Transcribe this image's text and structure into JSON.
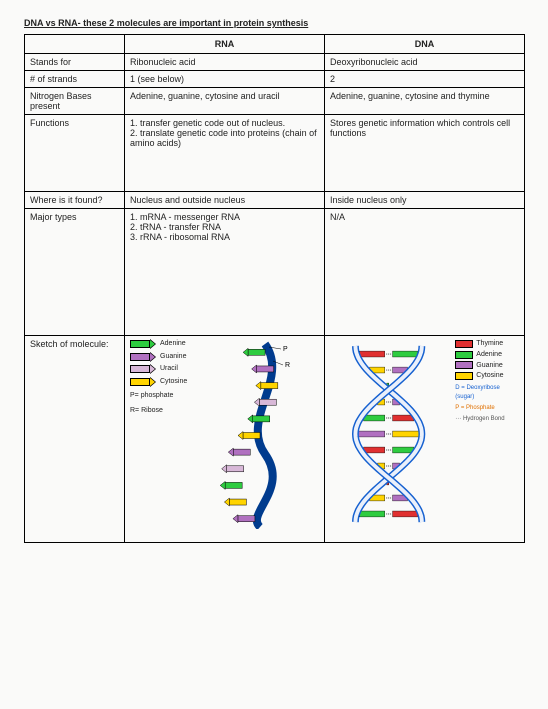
{
  "title": "DNA vs RNA- these 2 molecules are important in protein synthesis",
  "columns": {
    "c1": "",
    "c2": "RNA",
    "c3": "DNA"
  },
  "rows": {
    "stands": {
      "label": "Stands for",
      "rna": "Ribonucleic acid",
      "dna": "Deoxyribonucleic acid"
    },
    "strands": {
      "label": "# of strands",
      "rna": "1 (see below)",
      "dna": "2"
    },
    "bases": {
      "label": "Nitrogen Bases present",
      "rna": "Adenine, guanine, cytosine and uracil",
      "dna": "Adenine, guanine, cytosine and thymine"
    },
    "functions": {
      "label": "Functions",
      "rna": "1. transfer genetic code out of nucleus.\n2. translate genetic code into proteins (chain of amino acids)",
      "dna": "Stores genetic information which controls cell functions"
    },
    "found": {
      "label": "Where is it found?",
      "rna": "Nucleus and outside nucleus",
      "dna": "Inside nucleus only"
    },
    "types": {
      "label": "Major types",
      "rna": "1. mRNA - messenger RNA\n2. tRNA - transfer RNA\n3. rRNA - ribosomal RNA",
      "dna": "N/A"
    },
    "sketch": {
      "label": "Sketch of molecule:"
    }
  },
  "rna_legend": {
    "items": [
      {
        "label": "Adenine",
        "color": "#2ecc40"
      },
      {
        "label": "Guanine",
        "color": "#b070c0"
      },
      {
        "label": "Uracil",
        "color": "#d8b8d8"
      },
      {
        "label": "Cytosine",
        "color": "#ffd400"
      }
    ],
    "notes": [
      "P= phosphate",
      "R= Ribose"
    ]
  },
  "dna_legend": {
    "items": [
      {
        "label": "Thymine",
        "color": "#e03030"
      },
      {
        "label": "Adenine",
        "color": "#2ecc40"
      },
      {
        "label": "Guanine",
        "color": "#b070c0"
      },
      {
        "label": "Cytosine",
        "color": "#ffd400"
      }
    ],
    "notes": [
      {
        "text": "D = Deoxyribose (sugar)",
        "color": "#1560d0"
      },
      {
        "text": "P = Phosphate",
        "color": "#e07000"
      },
      {
        "text": "··· Hydrogen Bond",
        "color": "#555555"
      }
    ]
  },
  "rna_molecule": {
    "backbone_color": "#003b8e",
    "p_label": "P",
    "r_label": "R",
    "rungs": [
      {
        "color": "#2ecc40"
      },
      {
        "color": "#b070c0"
      },
      {
        "color": "#ffd400"
      },
      {
        "color": "#d8b8d8"
      },
      {
        "color": "#2ecc40"
      },
      {
        "color": "#ffd400"
      },
      {
        "color": "#b070c0"
      },
      {
        "color": "#d8b8d8"
      },
      {
        "color": "#2ecc40"
      },
      {
        "color": "#ffd400"
      },
      {
        "color": "#b070c0"
      }
    ]
  },
  "dna_molecule": {
    "backbone_color": "#1560d0",
    "fill_color": "#eaf0fb",
    "pairs": [
      {
        "l": "#e03030",
        "r": "#2ecc40"
      },
      {
        "l": "#ffd400",
        "r": "#b070c0"
      },
      {
        "l": "#2ecc40",
        "r": "#e03030"
      },
      {
        "l": "#b070c0",
        "r": "#ffd400"
      },
      {
        "l": "#e03030",
        "r": "#2ecc40"
      },
      {
        "l": "#ffd400",
        "r": "#b070c0"
      },
      {
        "l": "#2ecc40",
        "r": "#e03030"
      },
      {
        "l": "#b070c0",
        "r": "#ffd400"
      },
      {
        "l": "#e03030",
        "r": "#2ecc40"
      },
      {
        "l": "#ffd400",
        "r": "#b070c0"
      },
      {
        "l": "#2ecc40",
        "r": "#e03030"
      }
    ]
  }
}
